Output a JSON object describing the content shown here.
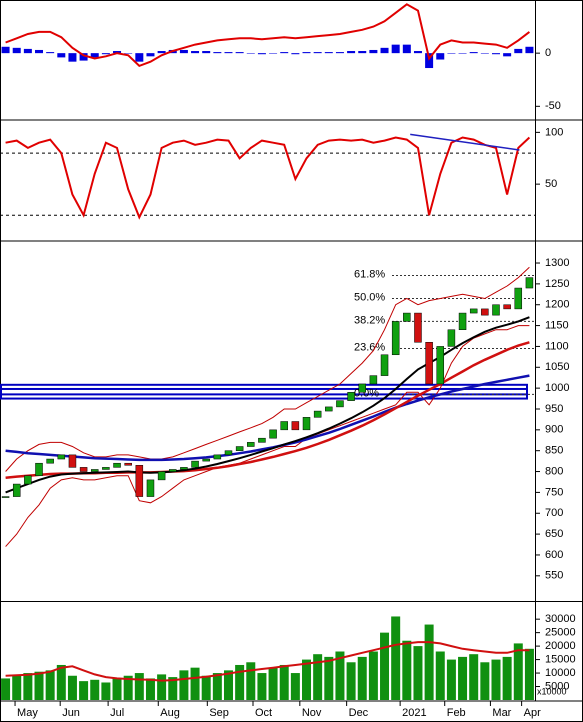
{
  "chart_data": {
    "type": "stock",
    "x": [
      0,
      1,
      2,
      3,
      4,
      5,
      6,
      7,
      8,
      9,
      10,
      11,
      12,
      13,
      14,
      15,
      16,
      17,
      18,
      19,
      20,
      21,
      22,
      23,
      24,
      25,
      26,
      27,
      28,
      29,
      30,
      31,
      32,
      33,
      34,
      35,
      36,
      37,
      38,
      39,
      40,
      41,
      42,
      43,
      44,
      45,
      46,
      47
    ],
    "xlim": [
      -0.5,
      47.5
    ],
    "xticks": [
      {
        "value": 0.85,
        "label": "May"
      },
      {
        "value": 4.9,
        "label": "Jun"
      },
      {
        "value": 9.2,
        "label": "Jul"
      },
      {
        "value": 13.7,
        "label": "Aug"
      },
      {
        "value": 18.1,
        "label": "Sep"
      },
      {
        "value": 22.2,
        "label": "Oct"
      },
      {
        "value": 26.4,
        "label": "Nov"
      },
      {
        "value": 30.6,
        "label": "Dec"
      },
      {
        "value": 35.4,
        "label": "2021"
      },
      {
        "value": 39.4,
        "label": "Feb"
      },
      {
        "value": 43.5,
        "label": "Mar"
      },
      {
        "value": 46.3,
        "label": "Apr"
      }
    ],
    "macd": {
      "ylim": [
        -61,
        50
      ],
      "yticks": [
        0,
        -50
      ],
      "line": {
        "color": "#e00000",
        "values": [
          10,
          14,
          18,
          20,
          20,
          15,
          5,
          -2,
          -5,
          -3,
          0,
          -2,
          -12,
          -8,
          -2,
          2,
          5,
          8,
          10,
          12,
          13,
          14,
          14,
          13,
          14,
          15,
          14,
          15,
          16,
          17,
          18,
          20,
          22,
          25,
          30,
          38,
          46,
          40,
          -5,
          8,
          12,
          10,
          10,
          9,
          8,
          5,
          12,
          20
        ]
      },
      "histogram": {
        "color": "#0000e0",
        "values": [
          6,
          5,
          4,
          3,
          1,
          -4,
          -8,
          -7,
          -4,
          -1,
          2,
          0,
          -8,
          -3,
          2,
          3,
          3,
          2,
          2,
          1,
          1,
          1,
          0,
          -1,
          0,
          1,
          -1,
          1,
          1,
          1,
          1,
          2,
          2,
          3,
          5,
          8,
          8,
          2,
          -14,
          -6,
          0,
          0,
          1,
          0,
          -1,
          -3,
          4,
          6
        ]
      }
    },
    "stochastic": {
      "ylim": [
        -2,
        110
      ],
      "yticks": [
        100,
        50
      ],
      "levels": [
        80,
        20
      ],
      "line": {
        "color": "#e00000",
        "values": [
          90,
          92,
          85,
          90,
          93,
          80,
          40,
          20,
          60,
          90,
          85,
          45,
          18,
          40,
          85,
          90,
          92,
          88,
          90,
          93,
          92,
          75,
          85,
          92,
          90,
          88,
          55,
          75,
          88,
          92,
          93,
          92,
          93,
          90,
          92,
          95,
          93,
          85,
          20,
          60,
          90,
          95,
          93,
          88,
          85,
          40,
          85,
          95
        ]
      },
      "trendline": {
        "color": "#2020c0",
        "x": [
          36.3,
          46.1
        ],
        "values": [
          98,
          83
        ]
      }
    },
    "price": {
      "ylim": [
        492,
        1348
      ],
      "yticks": [
        550,
        600,
        650,
        700,
        750,
        800,
        850,
        900,
        950,
        1000,
        1050,
        1100,
        1150,
        1200,
        1250,
        1300
      ],
      "up_color": "#10a010",
      "down_color": "#d01010",
      "close": [
        740,
        770,
        790,
        820,
        830,
        840,
        810,
        800,
        805,
        810,
        820,
        815,
        740,
        780,
        800,
        805,
        810,
        825,
        830,
        840,
        850,
        860,
        870,
        880,
        900,
        920,
        900,
        930,
        945,
        955,
        970,
        990,
        1010,
        1030,
        1080,
        1160,
        1180,
        1110,
        1010,
        1100,
        1140,
        1180,
        1190,
        1175,
        1200,
        1190,
        1240,
        1265
      ],
      "series": [
        {
          "color": "#c00000",
          "line_width": 1,
          "values": [
            800,
            830,
            850,
            865,
            870,
            870,
            860,
            845,
            835,
            835,
            840,
            840,
            835,
            830,
            830,
            835,
            845,
            855,
            865,
            875,
            885,
            895,
            905,
            915,
            930,
            950,
            950,
            965,
            980,
            995,
            1010,
            1035,
            1060,
            1090,
            1140,
            1200,
            1215,
            1200,
            1210,
            1215,
            1220,
            1225,
            1220,
            1215,
            1230,
            1245,
            1265,
            1290
          ]
        },
        {
          "color": "#c00000",
          "line_width": 1,
          "values": [
            620,
            650,
            690,
            720,
            760,
            780,
            785,
            780,
            780,
            785,
            790,
            790,
            730,
            725,
            740,
            760,
            780,
            790,
            800,
            810,
            815,
            820,
            830,
            840,
            850,
            860,
            860,
            880,
            890,
            900,
            910,
            920,
            930,
            940,
            950,
            960,
            990,
            990,
            960,
            1000,
            1060,
            1100,
            1120,
            1130,
            1140,
            1140,
            1150,
            1150
          ]
        },
        {
          "color": "#1010b0",
          "line_width": 2.5,
          "values": [
            850,
            847,
            844,
            842,
            840,
            838,
            836,
            834,
            832,
            831,
            830,
            829,
            828,
            828,
            828,
            829,
            830,
            832,
            834,
            837,
            840,
            844,
            848,
            853,
            858,
            864,
            870,
            877,
            885,
            893,
            902,
            912,
            922,
            932,
            943,
            953,
            962,
            970,
            978,
            985,
            992,
            998,
            1004,
            1010,
            1015,
            1020,
            1025,
            1030
          ]
        },
        {
          "color": "#d01010",
          "line_width": 2.5,
          "values": [
            785,
            788,
            790,
            792,
            794,
            795,
            795,
            796,
            796,
            797,
            797,
            798,
            798,
            798,
            799,
            800,
            801,
            803,
            806,
            809,
            813,
            818,
            823,
            829,
            835,
            842,
            849,
            857,
            866,
            876,
            887,
            898,
            910,
            923,
            937,
            952,
            967,
            982,
            996,
            1010,
            1025,
            1040,
            1055,
            1068,
            1080,
            1092,
            1102,
            1110
          ]
        },
        {
          "color": "#000000",
          "line_width": 2,
          "values": [
            750,
            760,
            770,
            780,
            788,
            793,
            795,
            796,
            797,
            798,
            799,
            800,
            798,
            797,
            798,
            800,
            803,
            807,
            812,
            818,
            825,
            832,
            840,
            848,
            856,
            865,
            873,
            882,
            892,
            903,
            915,
            928,
            942,
            958,
            976,
            998,
            1022,
            1045,
            1060,
            1075,
            1092,
            1108,
            1122,
            1135,
            1145,
            1152,
            1160,
            1170
          ]
        }
      ],
      "fibonacci": [
        {
          "value": 1270,
          "label": "61.8%"
        },
        {
          "value": 1215,
          "label": "50.0%"
        },
        {
          "value": 1160,
          "label": "38.2%"
        },
        {
          "value": 1095,
          "label": "23.6%"
        },
        {
          "value": 985,
          "label": "0.0%"
        }
      ],
      "fib_color": "#2030a0",
      "zones": [
        [
          985,
          1008
        ],
        [
          975,
          998
        ]
      ],
      "zone_color": "#0000c0"
    },
    "volume": {
      "ylim": [
        0,
        36000
      ],
      "yticks": [
        5000,
        10000,
        15000,
        20000,
        25000,
        30000
      ],
      "color": "#109010",
      "values": [
        8000,
        9000,
        10000,
        10500,
        11000,
        13000,
        9000,
        7000,
        7500,
        6500,
        8000,
        9000,
        10000,
        8000,
        9500,
        8500,
        11000,
        12000,
        9000,
        10000,
        11000,
        13000,
        14000,
        10000,
        12000,
        13000,
        10000,
        15000,
        17000,
        16000,
        18000,
        14000,
        16000,
        18000,
        25000,
        31000,
        22000,
        20000,
        28000,
        18000,
        15000,
        16000,
        17000,
        14000,
        15000,
        16000,
        21000,
        19000
      ],
      "ma": {
        "color": "#d01010",
        "values": [
          9000,
          9200,
          9400,
          9800,
          10500,
          12000,
          12500,
          11000,
          9500,
          8500,
          8000,
          7800,
          7600,
          7500,
          7200,
          7400,
          7800,
          8200,
          8600,
          9200,
          9800,
          10500,
          11000,
          11500,
          12000,
          12500,
          13000,
          13500,
          14000,
          14500,
          15500,
          16500,
          17500,
          18500,
          19500,
          20500,
          21000,
          21500,
          21500,
          21000,
          20000,
          19000,
          18500,
          18000,
          17500,
          17500,
          18500,
          18500
        ]
      },
      "unit_label": "x10000"
    }
  }
}
